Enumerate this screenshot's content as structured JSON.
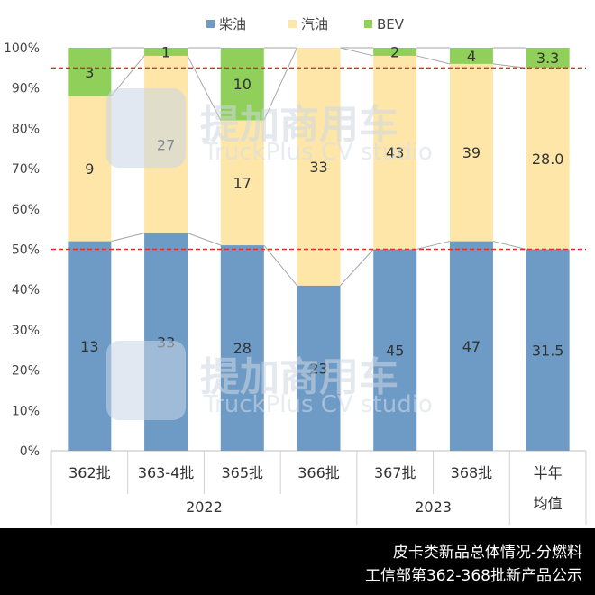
{
  "chart_data": {
    "type": "bar",
    "stacked": true,
    "percent": true,
    "categories": [
      "362批",
      "363-4批",
      "365批",
      "366批",
      "367批",
      "368批",
      "半年均值"
    ],
    "category_labels": [
      [
        "362批"
      ],
      [
        "363-4批"
      ],
      [
        "365批"
      ],
      [
        "366批"
      ],
      [
        "367批"
      ],
      [
        "368批"
      ],
      [
        "半年",
        "均值"
      ]
    ],
    "groups": [
      {
        "label": "2022",
        "span": [
          0,
          3
        ]
      },
      {
        "label": "2023",
        "span": [
          4,
          5
        ]
      }
    ],
    "series": [
      {
        "name": "柴油",
        "color": "#6e9bc6",
        "values": [
          13,
          33,
          28,
          23,
          45,
          47,
          31.5
        ],
        "percent": [
          52,
          54,
          51,
          41,
          50,
          52,
          50
        ],
        "labels": [
          "13",
          "33",
          "28",
          "23",
          "45",
          "47",
          "31.5"
        ]
      },
      {
        "name": "汽油",
        "color": "#fde6a8",
        "values": [
          9,
          27,
          17,
          33,
          43,
          39,
          28.0
        ],
        "percent": [
          36,
          44,
          31,
          59,
          48,
          44,
          45
        ],
        "labels": [
          "9",
          "27",
          "17",
          "33",
          "43",
          "39",
          "28.0"
        ]
      },
      {
        "name": "BEV",
        "color": "#8fcf5a",
        "values": [
          3,
          1,
          10,
          0,
          2,
          4,
          3.3
        ],
        "percent": [
          12,
          2,
          18,
          0,
          2,
          4,
          5
        ],
        "labels": [
          "3",
          "1",
          "10",
          "",
          "2",
          "4",
          "3.3"
        ]
      }
    ],
    "yticks": [
      "0%",
      "10%",
      "20%",
      "30%",
      "40%",
      "50%",
      "60%",
      "70%",
      "80%",
      "90%",
      "100%"
    ],
    "ylim": [
      0,
      100
    ],
    "reference_lines": [
      50,
      95
    ],
    "reference_color": "#e0302e",
    "legend_position": "top-center"
  },
  "watermark": {
    "cn": "提加商用车",
    "en": "TruckPlus CV studio"
  },
  "footer": {
    "line1": "皮卡类新品总体情况-分燃料",
    "line2": "工信部第362-368批新产品公示"
  }
}
